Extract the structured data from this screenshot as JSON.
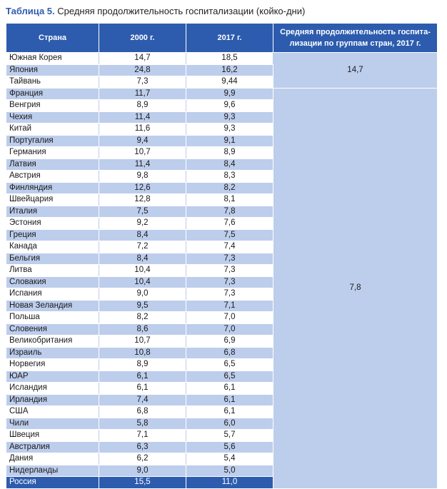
{
  "caption": {
    "label": "Таблица 5.",
    "text": "Средняя продолжительность госпитализации (койко-дни)"
  },
  "table": {
    "headers": {
      "country": "Страна",
      "y2000": "2000 г.",
      "y2017": "2017 г.",
      "group": "Средняя продолжительность госпита-лизации по группам стран, 2017 г."
    },
    "groups": [
      {
        "value": "14,7",
        "rows": 3
      },
      {
        "value": "7,8",
        "rows": 34
      }
    ],
    "rows": [
      {
        "country": "Южная Корея",
        "y2000": "14,7",
        "y2017": "18,5"
      },
      {
        "country": "Япония",
        "y2000": "24,8",
        "y2017": "16,2"
      },
      {
        "country": "Тайвань",
        "y2000": "7,3",
        "y2017": "9,44"
      },
      {
        "country": "Франция",
        "y2000": "11,7",
        "y2017": "9,9"
      },
      {
        "country": "Венгрия",
        "y2000": "8,9",
        "y2017": "9,6"
      },
      {
        "country": "Чехия",
        "y2000": "11,4",
        "y2017": "9,3"
      },
      {
        "country": "Китай",
        "y2000": "11,6",
        "y2017": "9,3"
      },
      {
        "country": "Португалия",
        "y2000": "9,4",
        "y2017": "9,1"
      },
      {
        "country": "Германия",
        "y2000": "10,7",
        "y2017": "8,9"
      },
      {
        "country": "Латвия",
        "y2000": "11,4",
        "y2017": "8,4"
      },
      {
        "country": "Австрия",
        "y2000": "9,8",
        "y2017": "8,3"
      },
      {
        "country": "Финляндия",
        "y2000": "12,6",
        "y2017": "8,2"
      },
      {
        "country": "Швейцария",
        "y2000": "12,8",
        "y2017": "8,1"
      },
      {
        "country": "Италия",
        "y2000": "7,5",
        "y2017": "7,8"
      },
      {
        "country": "Эстония",
        "y2000": "9,2",
        "y2017": "7,6"
      },
      {
        "country": "Греция",
        "y2000": "8,4",
        "y2017": "7,5"
      },
      {
        "country": "Канада",
        "y2000": "7,2",
        "y2017": "7,4"
      },
      {
        "country": "Бельгия",
        "y2000": "8,4",
        "y2017": "7,3"
      },
      {
        "country": "Литва",
        "y2000": "10,4",
        "y2017": "7,3"
      },
      {
        "country": "Словакия",
        "y2000": "10,4",
        "y2017": "7,3"
      },
      {
        "country": "Испания",
        "y2000": "9,0",
        "y2017": "7,3"
      },
      {
        "country": "Новая Зеландия",
        "y2000": "9,5",
        "y2017": "7,1"
      },
      {
        "country": "Польша",
        "y2000": "8,2",
        "y2017": "7,0"
      },
      {
        "country": "Словения",
        "y2000": "8,6",
        "y2017": "7,0"
      },
      {
        "country": "Великобритания",
        "y2000": "10,7",
        "y2017": "6,9"
      },
      {
        "country": "Израиль",
        "y2000": "10,8",
        "y2017": "6,8"
      },
      {
        "country": "Норвегия",
        "y2000": "8,9",
        "y2017": "6,5"
      },
      {
        "country": "ЮАР",
        "y2000": "6,1",
        "y2017": "6,5"
      },
      {
        "country": "Исландия",
        "y2000": "6,1",
        "y2017": "6,1"
      },
      {
        "country": "Ирландия",
        "y2000": "7,4",
        "y2017": "6,1"
      },
      {
        "country": "США",
        "y2000": "6,8",
        "y2017": "6,1"
      },
      {
        "country": "Чили",
        "y2000": "5,8",
        "y2017": "6,0"
      },
      {
        "country": "Швеция",
        "y2000": "7,1",
        "y2017": "5,7"
      },
      {
        "country": "Австралия",
        "y2000": "6,3",
        "y2017": "5,6"
      },
      {
        "country": "Дания",
        "y2000": "6,2",
        "y2017": "5,4"
      },
      {
        "country": "Нидерланды",
        "y2000": "9,0",
        "y2017": "5,0"
      },
      {
        "country": "Россия",
        "y2000": "15,5",
        "y2017": "11,0"
      }
    ],
    "colors": {
      "header": "#2d5cae",
      "stripe": "#bdcdec",
      "highlight": "#2d5cae"
    }
  }
}
